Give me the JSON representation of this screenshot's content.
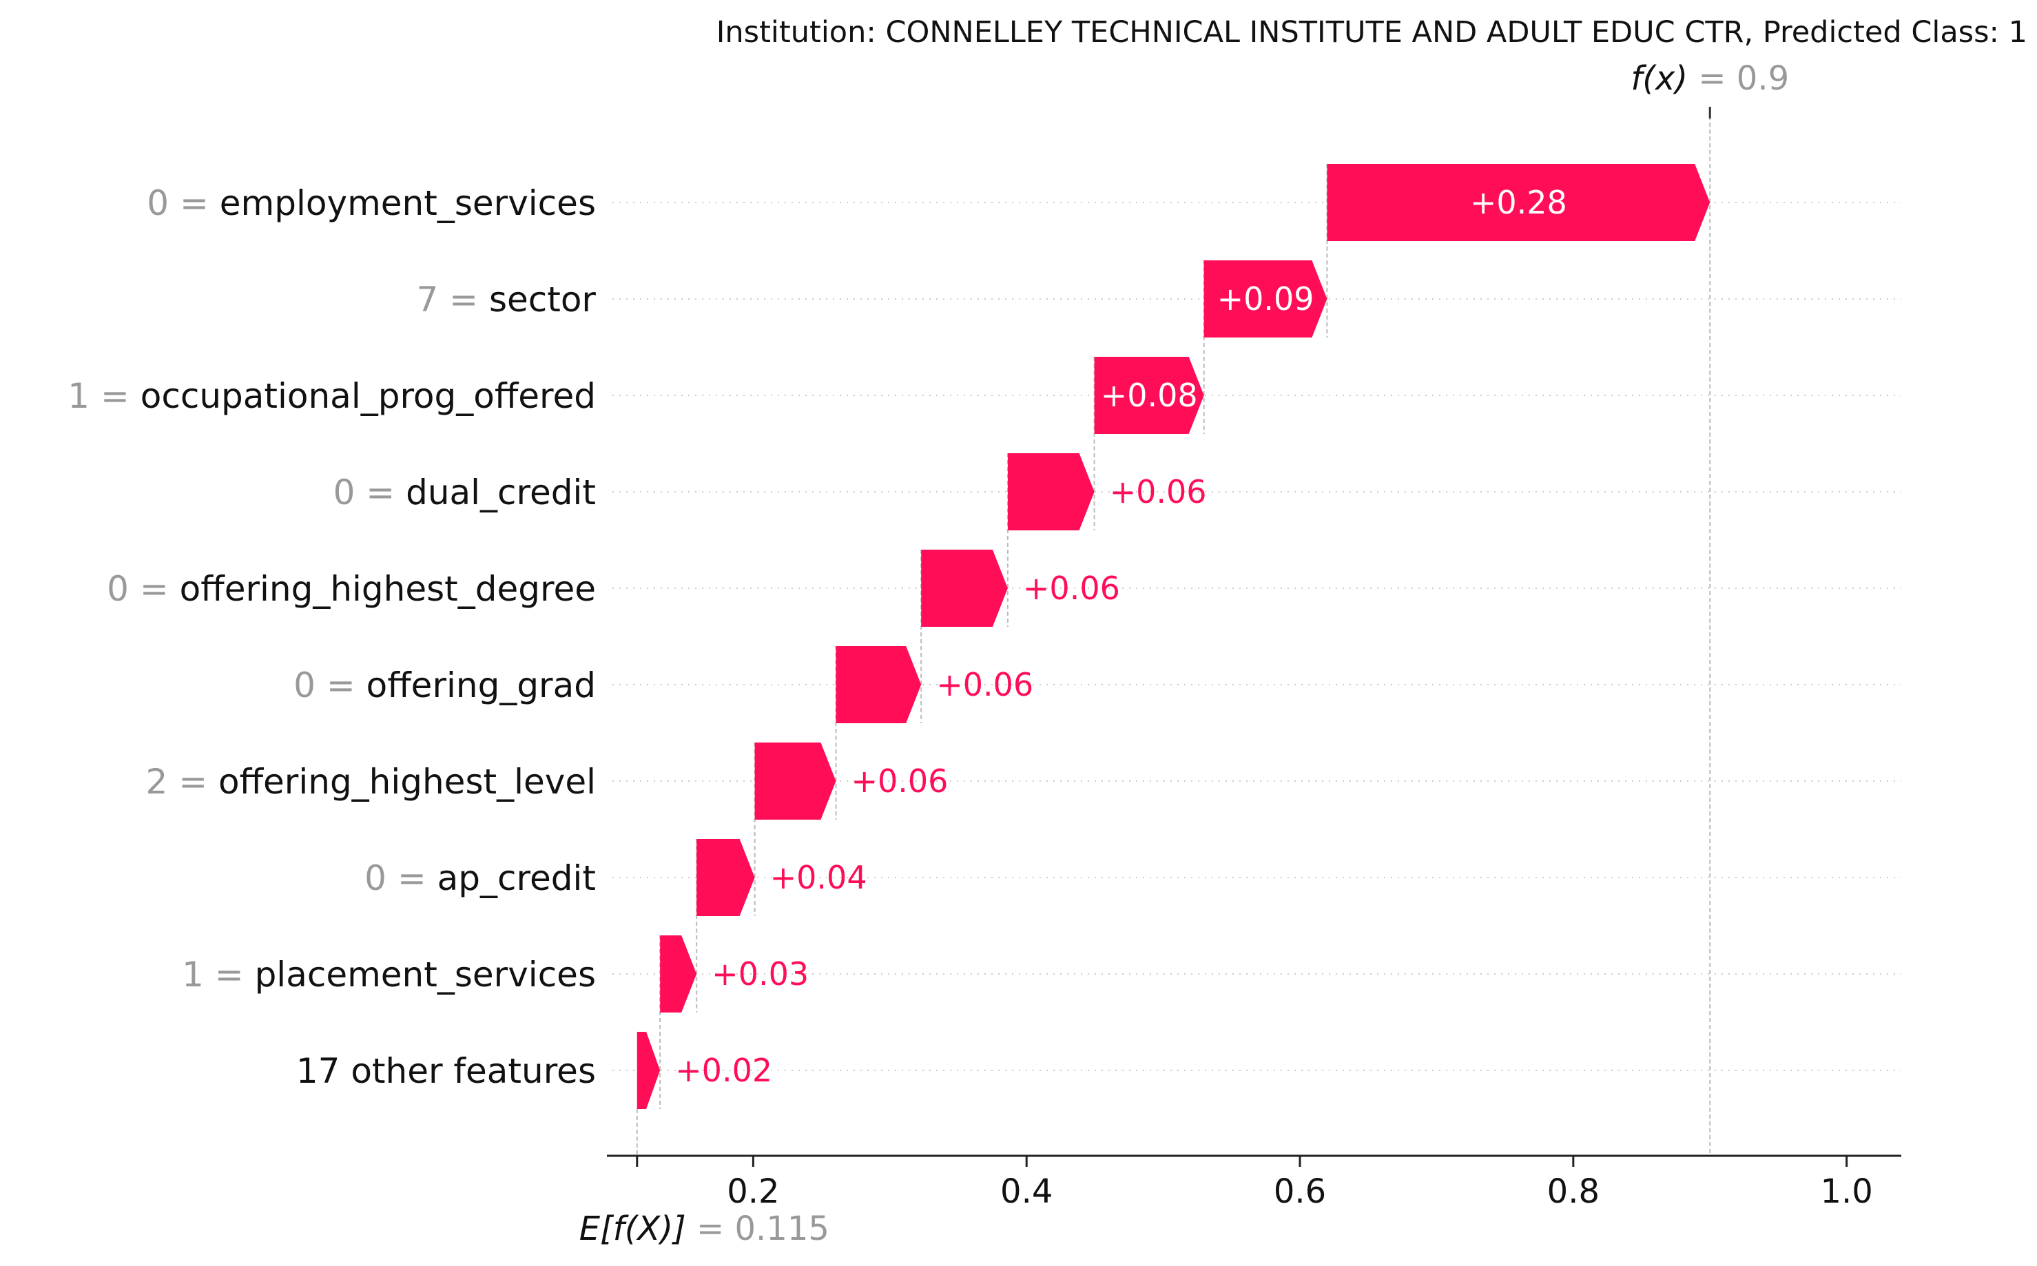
{
  "title": "Institution: CONNELLEY TECHNICAL INSTITUTE AND ADULT EDUC CTR, Predicted Class: 1",
  "chart_data": {
    "type": "waterfall",
    "base_value": {
      "label_prefix": "E[f(X)]",
      "label_eq": "=",
      "display": "0.115",
      "value": 0.115
    },
    "output_value": {
      "label_prefix": "f(x)",
      "label_eq": "=",
      "display": "0.9",
      "value": 0.9
    },
    "xlim": [
      0.1,
      1.04
    ],
    "xticks": [
      {
        "value": 0.2,
        "label": "0.2"
      },
      {
        "value": 0.4,
        "label": "0.4"
      },
      {
        "value": 0.6,
        "label": "0.6"
      },
      {
        "value": 0.8,
        "label": "0.8"
      },
      {
        "value": 1.0,
        "label": "1.0"
      }
    ],
    "color_positive": "#ff0d57",
    "features": [
      {
        "value": "0",
        "eq": "=",
        "name": "employment_services",
        "contribution": 0.283,
        "label": "+0.28"
      },
      {
        "value": "7",
        "eq": "=",
        "name": "sector",
        "contribution": 0.091,
        "label": "+0.09"
      },
      {
        "value": "1",
        "eq": "=",
        "name": "occupational_prog_offered",
        "contribution": 0.081,
        "label": "+0.08"
      },
      {
        "value": "0",
        "eq": "=",
        "name": "dual_credit",
        "contribution": 0.064,
        "label": "+0.06"
      },
      {
        "value": "0",
        "eq": "=",
        "name": "offering_highest_degree",
        "contribution": 0.064,
        "label": "+0.06"
      },
      {
        "value": "0",
        "eq": "=",
        "name": "offering_grad",
        "contribution": 0.063,
        "label": "+0.06"
      },
      {
        "value": "2",
        "eq": "=",
        "name": "offering_highest_level",
        "contribution": 0.06,
        "label": "+0.06"
      },
      {
        "value": "0",
        "eq": "=",
        "name": "ap_credit",
        "contribution": 0.043,
        "label": "+0.04"
      },
      {
        "value": "1",
        "eq": "=",
        "name": "placement_services",
        "contribution": 0.027,
        "label": "+0.03"
      },
      {
        "value": "",
        "eq": "",
        "name": "17 other features",
        "contribution": 0.017,
        "label": "+0.02"
      }
    ]
  }
}
